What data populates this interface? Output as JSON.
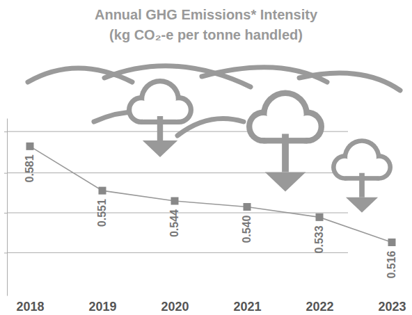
{
  "chart_data": {
    "type": "line",
    "title": "Annual GHG Emissions* Intensity",
    "subtitle": "(kg CO₂-e per tonne handled)",
    "categories": [
      "2018",
      "2019",
      "2020",
      "2021",
      "2022",
      "2023"
    ],
    "values": [
      0.581,
      0.551,
      0.544,
      0.54,
      0.533,
      0.516
    ],
    "color": "#999999",
    "marker": "square",
    "ylim": [
      0.48,
      0.6
    ],
    "yticks": [
      0.509,
      0.536,
      0.563,
      0.591
    ],
    "grid": true,
    "tick_labels": "x",
    "data_labels": true
  }
}
